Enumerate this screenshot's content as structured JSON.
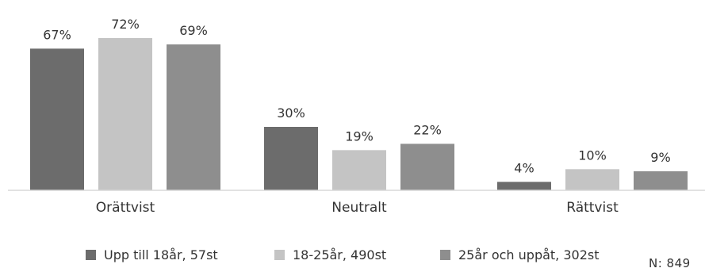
{
  "chart_data": {
    "type": "bar",
    "categories": [
      "Orättvist",
      "Neutralt",
      "Rättvist"
    ],
    "series": [
      {
        "name": "Upp till 18år, 57st",
        "values": [
          67,
          30,
          4
        ],
        "color": "#6c6c6c"
      },
      {
        "name": "18-25år, 490st",
        "values": [
          72,
          19,
          10
        ],
        "color": "#c4c4c4"
      },
      {
        "name": "25år och uppåt, 302st",
        "values": [
          69,
          22,
          9
        ],
        "color": "#8e8e8e"
      }
    ],
    "value_suffix": "%",
    "ylim": [
      0,
      75
    ],
    "grid": false,
    "legend_placement": "bottom",
    "n_note": "N: 849"
  }
}
